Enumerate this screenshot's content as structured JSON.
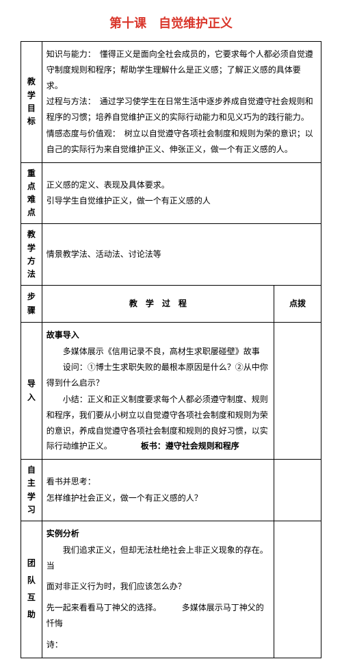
{
  "title": "第十课　自觉维护正义",
  "rows": {
    "goal_label": "教学\n目标",
    "goal_content": {
      "p1": "知识与能力：　懂得正义是面向全社会成员的，它要求每个人都必须自觉遵守制度规则和程序；帮助学生理解什么是正义感；了解正义感的具体要求。",
      "p2": "过程与方法：　通过学习使学生在日常生活中逐步养成自觉遵守社会规则和程序的习惯；培养自觉维护正义的实际行动能力和见义巧为的践行能力。",
      "p3": "情感态度与价值观：　树立以自觉遵守各项社会制度和规则为荣的意识；以自己的实际行为来自觉维护正义、伸张正义，做一个有正义感的人。"
    },
    "key_label": "重点\n难点",
    "key_content": {
      "p1": "正义感的定义、表现及具体要求。",
      "p2": "引导学生自觉维护正义，做一个有正义感的人"
    },
    "method_label": "教学\n方法",
    "method_content": "情景教学法、活动法、讨论法等",
    "step_h": "步骤",
    "proc_h": "教　学　过　程",
    "tip_h": "点拨",
    "intro_label": "导入",
    "intro_content": {
      "h1": "故事导入",
      "p1": "多媒体展示《信用记录不良，高材生求职屡碰壁》故事",
      "p2": "设问：①博士生求职失败的最根本原因是什么？②从中你得到什么启示？",
      "p3": "小结：正义和正义制度要求每个人都必须遵守制度、规则和程序，我们要从小树立以自觉遵守各项社会制度和规则为荣的意识，养成自觉遵守各项社会制度和规则的良好习惯，以实际行动维护正义。",
      "board_label": "板书：",
      "board_text": "遵守社会规则和程序"
    },
    "self_label": "自主\n学习",
    "self_content": {
      "p1": "看书并思考：",
      "p2": "怎样维护社会正义，做一个有正义感的人？"
    },
    "team_label": "团\n队\n互\n助",
    "team_content": {
      "h1": "实例分析",
      "p1": "我们追求正义，但却无法杜绝社会上非正义现象的存在。当",
      "p2": "面对非正义行为时，我们应该怎么办？",
      "p3a": "先一起来看看马丁神父的选择。",
      "p3b": "多媒体展示马丁神父的忏悔",
      "p4": "诗："
    }
  }
}
